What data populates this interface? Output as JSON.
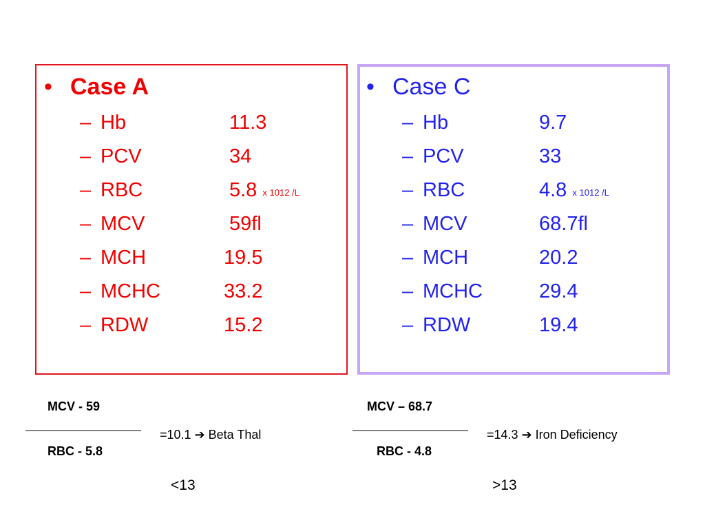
{
  "case_a": {
    "title": "Case A",
    "bullet": "•",
    "rows": [
      {
        "param": "Hb",
        "value": "11.3",
        "unit": ""
      },
      {
        "param": "PCV",
        "value": "34",
        "unit": ""
      },
      {
        "param": "RBC",
        "value": "5.8",
        "unit": "x 1012 /L"
      },
      {
        "param": "MCV",
        "value": "59fl",
        "unit": ""
      },
      {
        "param": "MCH",
        "value": "19.5",
        "unit": ""
      },
      {
        "param": "MCHC",
        "value": "33.2",
        "unit": ""
      },
      {
        "param": "RDW",
        "value": "15.2",
        "unit": ""
      }
    ]
  },
  "case_c": {
    "title": "Case C",
    "bullet": "•",
    "rows": [
      {
        "param": "Hb",
        "value": "9.7",
        "unit": ""
      },
      {
        "param": "PCV",
        "value": "33",
        "unit": ""
      },
      {
        "param": "RBC",
        "value": "4.8",
        "unit": "x 1012 /L"
      },
      {
        "param": "MCV",
        "value": "68.7fl",
        "unit": ""
      },
      {
        "param": "MCH",
        "value": "20.2",
        "unit": ""
      },
      {
        "param": "MCHC",
        "value": "29.4",
        "unit": ""
      },
      {
        "param": "RDW",
        "value": "19.4",
        "unit": ""
      }
    ]
  },
  "dash": "–",
  "formula_a": {
    "numerator": "MCV - 59",
    "denominator": "RBC - 5.8",
    "result": "=10.1 ➔ Beta Thal",
    "threshold": "<13"
  },
  "formula_c": {
    "numerator": "MCV – 68.7",
    "denominator": "RBC - 4.8",
    "result": "=14.3 ➔ Iron Deficiency",
    "threshold": ">13"
  },
  "colors": {
    "case_a": "#f00000",
    "case_c": "#2222ee",
    "box_a_border": "#e0161c",
    "box_c_border": "#c7a6f5"
  }
}
